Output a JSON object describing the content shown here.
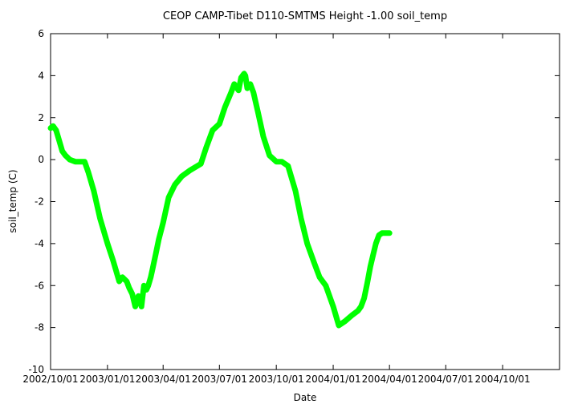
{
  "chart_data": {
    "type": "line",
    "title": "CEOP CAMP-Tibet D110-SMTMS Height -1.00 soil_temp",
    "xlabel": "Date",
    "ylabel": "soil_temp (C)",
    "xlim": [
      "2002-10-01",
      "2005-01-01"
    ],
    "ylim": [
      -10,
      6
    ],
    "grid": false,
    "legend": "none",
    "line_color": "#00ff00",
    "x_ticks": [
      "2002-10-01",
      "2003-01-01",
      "2003-04-01",
      "2003-07-01",
      "2003-10-01",
      "2004-01-01",
      "2004-04-01",
      "2004-07-01",
      "2004-10-01"
    ],
    "x_tick_labels": [
      "2002/10/01",
      "2003/01/01",
      "2003/04/01",
      "2003/07/01",
      "2003/10/01",
      "2004/01/01",
      "2004/04/01",
      "2004/07/01",
      "2004/10/01"
    ],
    "y_ticks": [
      -10,
      -8,
      -6,
      -4,
      -2,
      0,
      2,
      4,
      6
    ],
    "y_tick_labels": [
      "-10",
      "-8",
      "-6",
      "-4",
      "-2",
      "0",
      "2",
      "4",
      "6"
    ],
    "series": [
      {
        "x": [
          "2002-10-01",
          "2002-10-05",
          "2002-10-10",
          "2002-10-15",
          "2002-10-20",
          "2002-10-25",
          "2002-11-01",
          "2002-11-10",
          "2002-11-20",
          "2002-11-25",
          "2002-12-01",
          "2002-12-10",
          "2002-12-20",
          "2003-01-01",
          "2003-01-10",
          "2003-01-20",
          "2003-01-25",
          "2003-02-01",
          "2003-02-05",
          "2003-02-10",
          "2003-02-15",
          "2003-02-20",
          "2003-02-25",
          "2003-03-01",
          "2003-03-05",
          "2003-03-08",
          "2003-03-12",
          "2003-03-15",
          "2003-03-20",
          "2003-03-25",
          "2003-04-01",
          "2003-04-10",
          "2003-04-20",
          "2003-05-01",
          "2003-05-15",
          "2003-06-01",
          "2003-06-10",
          "2003-06-20",
          "2003-07-01",
          "2003-07-10",
          "2003-07-20",
          "2003-07-25",
          "2003-08-01",
          "2003-08-05",
          "2003-08-10",
          "2003-08-12",
          "2003-08-15",
          "2003-08-20",
          "2003-08-25",
          "2003-09-01",
          "2003-09-10",
          "2003-09-20",
          "2003-10-01",
          "2003-10-10",
          "2003-10-20",
          "2003-11-01",
          "2003-11-10",
          "2003-11-20",
          "2003-12-01",
          "2003-12-10",
          "2003-12-20",
          "2004-01-01",
          "2004-01-10",
          "2004-01-20",
          "2004-02-01",
          "2004-02-10",
          "2004-02-15",
          "2004-02-20",
          "2004-02-25",
          "2004-03-01",
          "2004-03-05",
          "2004-03-10",
          "2004-03-15",
          "2004-03-20",
          "2004-03-25",
          "2004-04-01"
        ],
        "y": [
          1.5,
          1.6,
          1.4,
          0.9,
          0.4,
          0.2,
          0.0,
          -0.1,
          -0.1,
          -0.1,
          -0.6,
          -1.5,
          -2.8,
          -4.0,
          -4.8,
          -5.8,
          -5.6,
          -5.8,
          -6.1,
          -6.4,
          -7.0,
          -6.5,
          -7.0,
          -6.0,
          -6.2,
          -6.0,
          -5.6,
          -5.2,
          -4.5,
          -3.8,
          -3.0,
          -1.8,
          -1.2,
          -0.8,
          -0.5,
          -0.2,
          0.6,
          1.4,
          1.7,
          2.5,
          3.2,
          3.6,
          3.3,
          3.9,
          4.1,
          4.0,
          3.4,
          3.6,
          3.2,
          2.3,
          1.1,
          0.2,
          -0.1,
          -0.1,
          -0.3,
          -1.5,
          -2.8,
          -4.0,
          -4.9,
          -5.6,
          -6.0,
          -7.0,
          -7.9,
          -7.7,
          -7.4,
          -7.2,
          -7.0,
          -6.6,
          -5.9,
          -5.1,
          -4.6,
          -4.0,
          -3.6,
          -3.5,
          -3.5,
          -3.5
        ]
      }
    ]
  }
}
